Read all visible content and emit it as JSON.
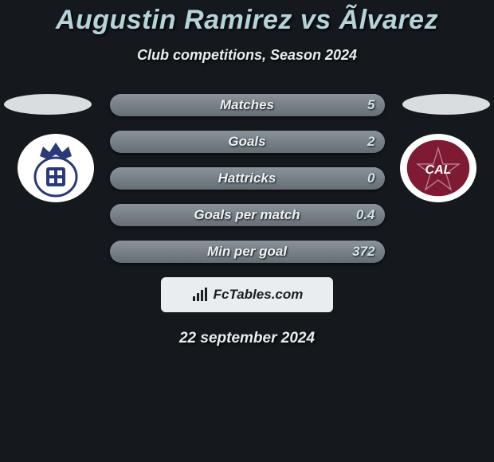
{
  "background_color": "#15191e",
  "title": {
    "text": "Augustin Ramirez vs Ãlvarez",
    "color": "#b5d4da",
    "fontsize": 34
  },
  "subtitle": {
    "text": "Club competitions, Season 2024",
    "color": "#e8eef0",
    "fontsize": 18
  },
  "side_ovals": {
    "color": "#d9dde0"
  },
  "club_left": {
    "name": "gimnasia-badge",
    "bg": "#ffffff",
    "accent": "#2a3a78"
  },
  "club_right": {
    "name": "lanus-badge",
    "bg": "#ffffff",
    "accent": "#7f1a33"
  },
  "bars": {
    "track_gradient_top": "#868f96",
    "track_gradient_bottom": "#5e666d",
    "fill_gradient_top": "#8a939a",
    "fill_gradient_bottom": "#666e75",
    "label_color": "#eef3f5",
    "value_color": "#cfe7ec",
    "label_fontsize": 17,
    "value_fontsize": 17,
    "items": [
      {
        "label": "Matches",
        "right_value": "5",
        "fill_pct": 100
      },
      {
        "label": "Goals",
        "right_value": "2",
        "fill_pct": 100
      },
      {
        "label": "Hattricks",
        "right_value": "0",
        "fill_pct": 100
      },
      {
        "label": "Goals per match",
        "right_value": "0.4",
        "fill_pct": 100
      },
      {
        "label": "Min per goal",
        "right_value": "372",
        "fill_pct": 100
      }
    ]
  },
  "brand": {
    "box_bg": "#e9edef",
    "text": "FcTables.com",
    "text_color": "#1b1f23",
    "fontsize": 17,
    "icon_color": "#1b1f23"
  },
  "date": {
    "text": "22 september 2024",
    "color": "#e8eef0",
    "fontsize": 19
  }
}
